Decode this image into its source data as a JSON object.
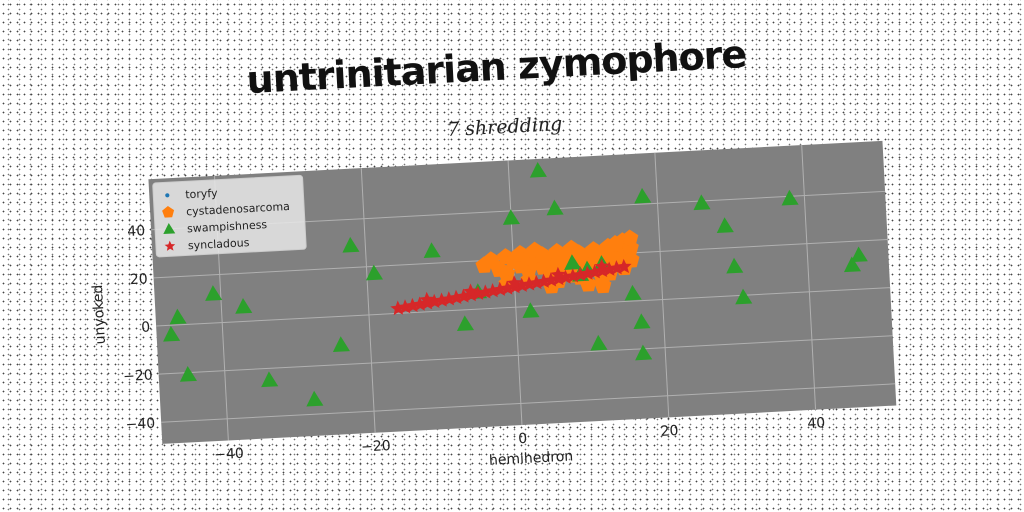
{
  "chart_data": {
    "type": "scatter",
    "title": "untrinitarian zymophore",
    "subtitle": "7 shredding",
    "xlabel": "hemihedron",
    "ylabel": "unyoked",
    "xlim": [
      -49,
      51
    ],
    "ylim": [
      -49,
      61
    ],
    "xticks": [
      -40,
      -20,
      0,
      20,
      40
    ],
    "yticks": [
      -40,
      -20,
      0,
      20,
      40
    ],
    "grid": true,
    "legend_position": "top-left",
    "background": "#808080",
    "series": [
      {
        "name": "toryfy",
        "marker": "circle",
        "color": "#1f77b4",
        "points": []
      },
      {
        "name": "cystadenosarcoma",
        "marker": "pentagon",
        "color": "#ff7f0e",
        "points": [
          [
            -4,
            18
          ],
          [
            -3,
            20
          ],
          [
            -2,
            16
          ],
          [
            -1,
            21
          ],
          [
            -1,
            14
          ],
          [
            0,
            19
          ],
          [
            1,
            17
          ],
          [
            1,
            22
          ],
          [
            2,
            15
          ],
          [
            2,
            20
          ],
          [
            3,
            18
          ],
          [
            3,
            23
          ],
          [
            4,
            16
          ],
          [
            4,
            21
          ],
          [
            5,
            19
          ],
          [
            5,
            13
          ],
          [
            6,
            22
          ],
          [
            6,
            17
          ],
          [
            6,
            10
          ],
          [
            7,
            20
          ],
          [
            7,
            15
          ],
          [
            8,
            18
          ],
          [
            8,
            23
          ],
          [
            8,
            12
          ],
          [
            9,
            16
          ],
          [
            9,
            21
          ],
          [
            10,
            19
          ],
          [
            10,
            14
          ],
          [
            10,
            8
          ],
          [
            11,
            22
          ],
          [
            11,
            17
          ],
          [
            12,
            20
          ],
          [
            12,
            15
          ],
          [
            12,
            10
          ],
          [
            13,
            23
          ],
          [
            13,
            18
          ],
          [
            13,
            12
          ],
          [
            14,
            21
          ],
          [
            14,
            16
          ],
          [
            14,
            24
          ],
          [
            15,
            19
          ],
          [
            15,
            14
          ],
          [
            15,
            25
          ],
          [
            16,
            22
          ],
          [
            16,
            26
          ],
          [
            16,
            17
          ],
          [
            5,
            8
          ],
          [
            9,
            11
          ],
          [
            -1,
            10
          ],
          [
            2,
            11
          ],
          [
            12,
            7
          ]
        ]
      },
      {
        "name": "swampishness",
        "marker": "triangle",
        "color": "#2ca02c",
        "points": [
          [
            4,
            56
          ],
          [
            18,
            43
          ],
          [
            6,
            40
          ],
          [
            -22,
            29
          ],
          [
            0,
            37
          ],
          [
            -11,
            25
          ],
          [
            -19,
            17
          ],
          [
            -41,
            12
          ],
          [
            -37,
            6
          ],
          [
            -46,
            3
          ],
          [
            -47,
            -4
          ],
          [
            -45,
            -21
          ],
          [
            -34,
            -25
          ],
          [
            -28,
            -34
          ],
          [
            -24,
            -12
          ],
          [
            -7,
            -6
          ],
          [
            -5,
            7
          ],
          [
            2,
            -2
          ],
          [
            8,
            17
          ],
          [
            9,
            12
          ],
          [
            10,
            14
          ],
          [
            12,
            16
          ],
          [
            11,
            -17
          ],
          [
            16,
            3
          ],
          [
            17,
            -9
          ],
          [
            17,
            -22
          ],
          [
            26,
            39
          ],
          [
            29,
            29
          ],
          [
            30,
            12
          ],
          [
            31,
            -1
          ],
          [
            38,
            39
          ],
          [
            46,
            10
          ],
          [
            47,
            14
          ]
        ]
      },
      {
        "name": "syncladous",
        "marker": "star",
        "color": "#d62728",
        "points": [
          [
            -16.0,
            2.0
          ],
          [
            -15.0,
            2.4
          ],
          [
            -14.0,
            2.8
          ],
          [
            -13.0,
            3.2
          ],
          [
            -12.0,
            3.6
          ],
          [
            -11.0,
            4.0
          ],
          [
            -10.0,
            4.4
          ],
          [
            -9.0,
            4.8
          ],
          [
            -8.0,
            5.2
          ],
          [
            -7.0,
            5.6
          ],
          [
            -6.0,
            6.0
          ],
          [
            -5.0,
            6.4
          ],
          [
            -4.0,
            6.8
          ],
          [
            -3.0,
            7.2
          ],
          [
            -2.0,
            7.6
          ],
          [
            -1.0,
            8.0
          ],
          [
            0.0,
            8.4
          ],
          [
            1.0,
            8.8
          ],
          [
            2.0,
            9.2
          ],
          [
            3.0,
            9.6
          ],
          [
            4.0,
            10.0
          ],
          [
            5.0,
            10.4
          ],
          [
            6.0,
            10.8
          ],
          [
            7.0,
            11.2
          ],
          [
            8.0,
            11.6
          ],
          [
            9.0,
            12.0
          ],
          [
            10.0,
            12.4
          ],
          [
            11.0,
            12.8
          ],
          [
            12.0,
            13.2
          ],
          [
            13.0,
            13.6
          ],
          [
            14.0,
            14.0
          ],
          [
            15.0,
            14.4
          ],
          [
            -12.0,
            5.0
          ],
          [
            -6.0,
            7.5
          ],
          [
            0.0,
            10.0
          ],
          [
            6.0,
            12.5
          ],
          [
            12.0,
            15.0
          ]
        ]
      }
    ]
  }
}
